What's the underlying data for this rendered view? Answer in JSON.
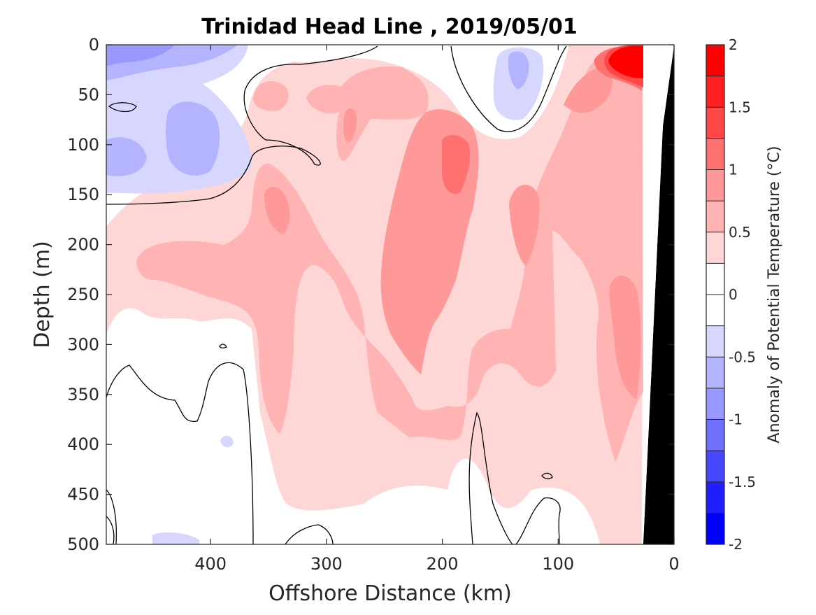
{
  "chart_data": {
    "type": "heatmap",
    "subtype": "filled-contour",
    "title": "Trinidad Head Line , 2019/05/01",
    "xlabel": "Offshore Distance (km)",
    "ylabel": "Depth (m)",
    "x_direction": "reversed",
    "y_direction": "reversed",
    "xlim": [
      0,
      490
    ],
    "ylim": [
      0,
      500
    ],
    "xticks": [
      400,
      300,
      200,
      100,
      0
    ],
    "yticks": [
      0,
      50,
      100,
      150,
      200,
      250,
      300,
      350,
      400,
      450,
      500
    ],
    "colorbar": {
      "label": "Anomaly of Potential Temperature (°C)",
      "range": [
        -2,
        2
      ],
      "step": 0.25,
      "ticks": [
        2,
        1.5,
        1,
        0.5,
        0,
        -0.5,
        -1,
        -1.5,
        -2
      ],
      "tick_labels": [
        "2",
        "1.5",
        "1",
        "0.5",
        "0",
        "-0.5",
        "-1",
        "-1.5",
        "-2"
      ],
      "colors": [
        "#0000ff",
        "#2020ff",
        "#4747ff",
        "#7070ff",
        "#9898ff",
        "#b3b3ff",
        "#d6d6ff",
        "#ffffff",
        "#ffffff",
        "#ffd6d6",
        "#ffb3b3",
        "#ff9898",
        "#ff7070",
        "#ff4747",
        "#2020ff",
        "#ff0000"
      ]
    },
    "zero_contour": "black",
    "seafloor_color": "#000000",
    "anomaly_field": {
      "note": "Approximate anomaly values (°C) read from filled contours",
      "x_km": [
        480,
        440,
        400,
        360,
        320,
        280,
        240,
        200,
        160,
        120,
        80,
        50,
        30
      ],
      "depth_m": [
        0,
        25,
        50,
        100,
        150,
        200,
        250,
        300,
        350,
        400,
        450,
        500
      ],
      "values": [
        [
          -0.6,
          -0.6,
          -0.5,
          -0.2,
          0.1,
          0.3,
          0.4,
          0.4,
          0.0,
          -0.3,
          0.6,
          1.4,
          2.0
        ],
        [
          -0.5,
          -0.5,
          -0.4,
          -0.2,
          0.2,
          0.4,
          0.6,
          0.6,
          0.1,
          -0.3,
          0.7,
          1.2,
          1.8
        ],
        [
          -0.3,
          -0.2,
          -0.3,
          0.0,
          0.5,
          0.6,
          0.7,
          0.7,
          0.1,
          -0.2,
          0.8,
          0.9,
          1.0
        ],
        [
          -0.4,
          -0.3,
          -0.4,
          0.0,
          0.4,
          0.7,
          0.8,
          1.0,
          0.6,
          0.6,
          0.8,
          0.7,
          0.6
        ],
        [
          -0.3,
          -0.2,
          -0.2,
          0.3,
          0.7,
          0.5,
          0.7,
          0.9,
          0.5,
          0.8,
          0.6,
          0.5,
          0.6
        ],
        [
          0.2,
          0.4,
          0.5,
          0.5,
          0.6,
          0.5,
          0.8,
          0.9,
          0.6,
          0.7,
          0.6,
          0.6,
          0.6
        ],
        [
          0.1,
          0.2,
          0.3,
          0.4,
          0.6,
          0.6,
          0.7,
          0.8,
          0.5,
          0.7,
          0.5,
          0.6,
          0.8
        ],
        [
          0.1,
          0.1,
          0.2,
          0.5,
          0.7,
          0.6,
          0.6,
          0.8,
          0.4,
          0.5,
          0.4,
          0.5,
          0.8
        ],
        [
          0.0,
          0.1,
          0.1,
          0.4,
          0.6,
          0.5,
          0.5,
          0.6,
          0.3,
          0.6,
          0.4,
          0.5,
          0.8
        ],
        [
          0.1,
          0.0,
          0.1,
          0.3,
          0.5,
          0.5,
          0.5,
          0.4,
          0.1,
          0.3,
          0.3,
          0.4,
          0.6
        ],
        [
          0.0,
          0.0,
          0.1,
          0.2,
          0.4,
          0.3,
          0.4,
          0.3,
          0.0,
          0.2,
          0.1,
          0.3,
          0.4
        ],
        [
          0.0,
          0.0,
          -0.1,
          0.1,
          0.2,
          0.1,
          0.2,
          0.2,
          -0.1,
          0.0,
          0.1,
          0.3,
          0.3
        ]
      ]
    }
  }
}
